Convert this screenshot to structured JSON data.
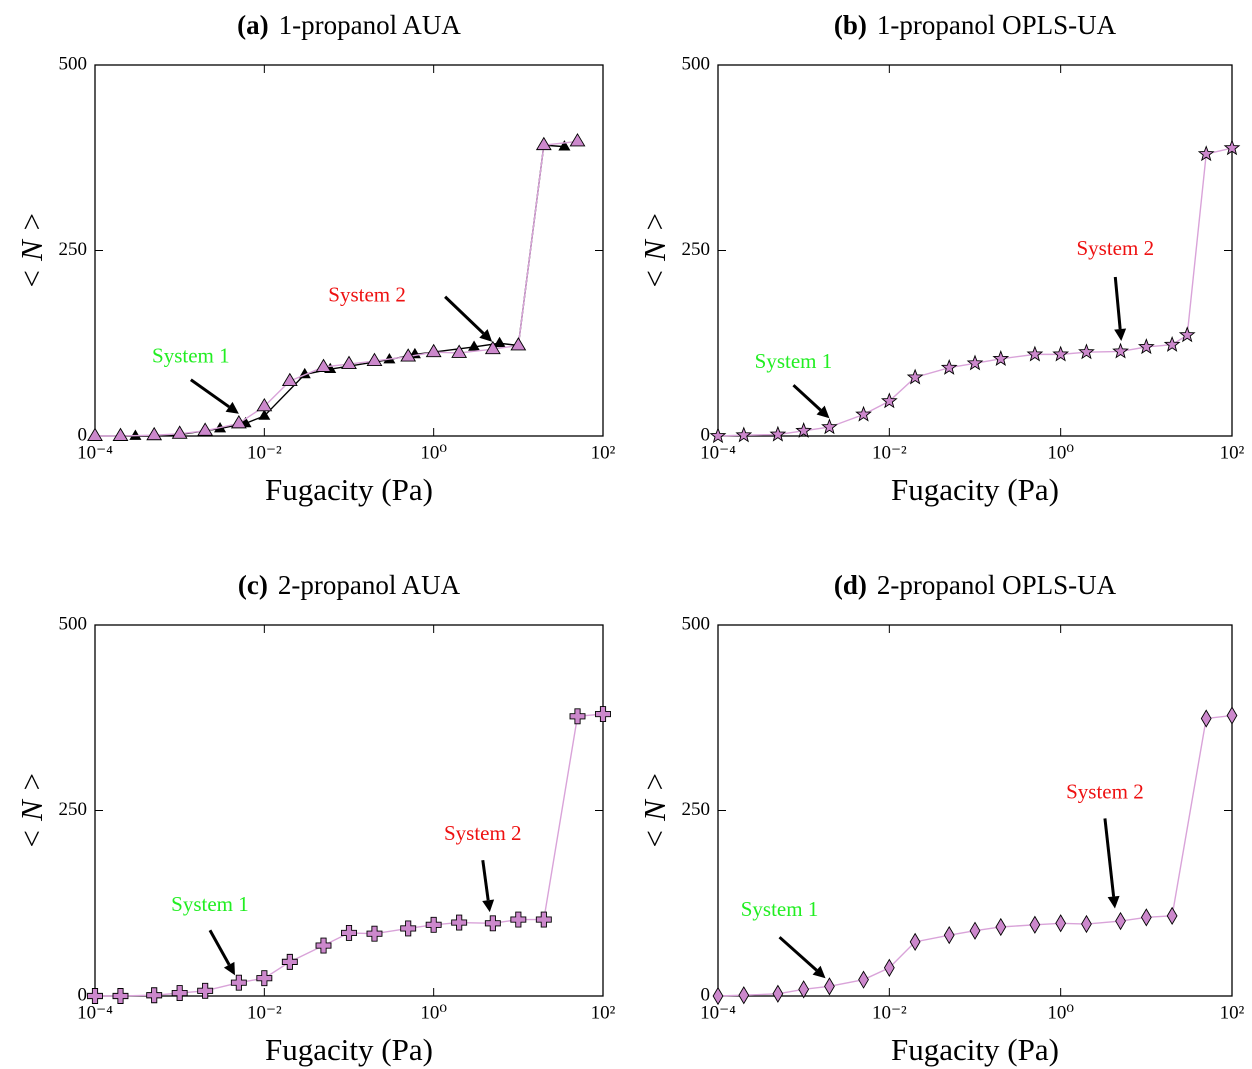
{
  "chart_data": [
    {
      "type": "line",
      "panel_label": "(a)",
      "title": "1-propanol AUA",
      "x_label": "Fugacity (Pa)",
      "y_label": "< N >",
      "xlog": true,
      "xlim": [
        0.0001,
        100
      ],
      "ylim": [
        0,
        500
      ],
      "xticks": [
        {
          "value": 0.0001,
          "label": "10⁻⁴"
        },
        {
          "value": 0.01,
          "label": "10⁻²"
        },
        {
          "value": 1,
          "label": "10⁰"
        },
        {
          "value": 100,
          "label": "10²"
        }
      ],
      "yticks": [
        0,
        250,
        500
      ],
      "series": [
        {
          "color": "#000000",
          "marker": "triangle-small",
          "x": [
            0.0002,
            0.0003,
            0.0005,
            0.001,
            0.003,
            0.006,
            0.01,
            0.03,
            0.06,
            0.3,
            0.6,
            3,
            6,
            10,
            20,
            35
          ],
          "values": [
            0,
            0,
            0,
            2,
            10,
            17,
            27,
            83,
            90,
            103,
            110,
            120,
            125,
            122,
            392,
            390
          ]
        },
        {
          "color": "#cc88cc",
          "marker": "triangle",
          "x": [
            0.0001,
            0.0002,
            0.0005,
            0.001,
            0.002,
            0.005,
            0.01,
            0.02,
            0.05,
            0.1,
            0.2,
            0.5,
            1,
            2,
            5,
            10,
            20,
            50
          ],
          "values": [
            0,
            0,
            1,
            3,
            7,
            17,
            40,
            74,
            93,
            97,
            101,
            107,
            113,
            112,
            117,
            122,
            392,
            397
          ]
        }
      ],
      "annotations": [
        {
          "text": "System 1",
          "color": "#22ee22",
          "xy": [
            0.005,
            30
          ]
        },
        {
          "text": "System 2",
          "color": "#ee1111",
          "xy": [
            4.9,
            127
          ]
        }
      ]
    },
    {
      "type": "line",
      "panel_label": "(b)",
      "title": "1-propanol OPLS-UA",
      "x_label": "Fugacity (Pa)",
      "y_label": "< N >",
      "xlog": true,
      "xlim": [
        0.0001,
        100
      ],
      "ylim": [
        0,
        500
      ],
      "xticks": [
        {
          "value": 0.0001,
          "label": "10⁻⁴"
        },
        {
          "value": 0.01,
          "label": "10⁻²"
        },
        {
          "value": 1,
          "label": "10⁰"
        },
        {
          "value": 100,
          "label": "10²"
        }
      ],
      "yticks": [
        0,
        250,
        500
      ],
      "series": [
        {
          "color": "#cc88cc",
          "marker": "star",
          "x": [
            0.0001,
            0.0002,
            0.0005,
            0.001,
            0.002,
            0.005,
            0.01,
            0.02,
            0.05,
            0.1,
            0.2,
            0.5,
            1,
            2,
            5,
            10,
            20,
            30,
            50,
            100
          ],
          "values": [
            0,
            1,
            2,
            7,
            12,
            29,
            47,
            79,
            92,
            98,
            104,
            110,
            110,
            113,
            114,
            120,
            123,
            136,
            380,
            388
          ]
        }
      ],
      "annotations": [
        {
          "text": "System 1",
          "color": "#22ee22",
          "xy": [
            0.002,
            24
          ]
        },
        {
          "text": "System 2",
          "color": "#ee1111",
          "xy": [
            5.1,
            128
          ]
        }
      ]
    },
    {
      "type": "line",
      "panel_label": "(c)",
      "title": "2-propanol AUA",
      "x_label": "Fugacity (Pa)",
      "y_label": "< N >",
      "xlog": true,
      "xlim": [
        0.0001,
        100
      ],
      "ylim": [
        0,
        500
      ],
      "xticks": [
        {
          "value": 0.0001,
          "label": "10⁻⁴"
        },
        {
          "value": 0.01,
          "label": "10⁻²"
        },
        {
          "value": 1,
          "label": "10⁰"
        },
        {
          "value": 100,
          "label": "10²"
        }
      ],
      "yticks": [
        0,
        250,
        500
      ],
      "series": [
        {
          "color": "#cc88cc",
          "marker": "plus",
          "x": [
            0.0001,
            0.0002,
            0.0005,
            0.001,
            0.002,
            0.005,
            0.01,
            0.02,
            0.05,
            0.1,
            0.2,
            0.5,
            1,
            2,
            5,
            10,
            20,
            50,
            100
          ],
          "values": [
            0,
            0,
            1,
            4,
            7,
            18,
            24,
            46,
            68,
            85,
            84,
            91,
            96,
            99,
            98,
            103,
            103,
            377,
            380
          ]
        }
      ],
      "annotations": [
        {
          "text": "System 1",
          "color": "#22ee22",
          "xy": [
            0.0045,
            28
          ]
        },
        {
          "text": "System 2",
          "color": "#ee1111",
          "xy": [
            4.6,
            113
          ]
        }
      ]
    },
    {
      "type": "line",
      "panel_label": "(d)",
      "title": "2-propanol OPLS-UA",
      "x_label": "Fugacity (Pa)",
      "y_label": "< N >",
      "xlog": true,
      "xlim": [
        0.0001,
        100
      ],
      "ylim": [
        0,
        500
      ],
      "xticks": [
        {
          "value": 0.0001,
          "label": "10⁻⁴"
        },
        {
          "value": 0.01,
          "label": "10⁻²"
        },
        {
          "value": 1,
          "label": "10⁰"
        },
        {
          "value": 100,
          "label": "10²"
        }
      ],
      "yticks": [
        0,
        250,
        500
      ],
      "series": [
        {
          "color": "#cc88cc",
          "marker": "diamond",
          "x": [
            0.0001,
            0.0002,
            0.0005,
            0.001,
            0.002,
            0.005,
            0.01,
            0.02,
            0.05,
            0.1,
            0.2,
            0.5,
            1,
            2,
            5,
            10,
            20,
            50,
            100
          ],
          "values": [
            0,
            1,
            3,
            9,
            13,
            22,
            38,
            73,
            82,
            88,
            93,
            96,
            98,
            97,
            101,
            106,
            108,
            374,
            378
          ]
        }
      ],
      "annotations": [
        {
          "text": "System 1",
          "color": "#22ee22",
          "xy": [
            0.0018,
            24
          ]
        },
        {
          "text": "System 2",
          "color": "#ee1111",
          "xy": [
            4.3,
            118
          ]
        }
      ]
    }
  ]
}
